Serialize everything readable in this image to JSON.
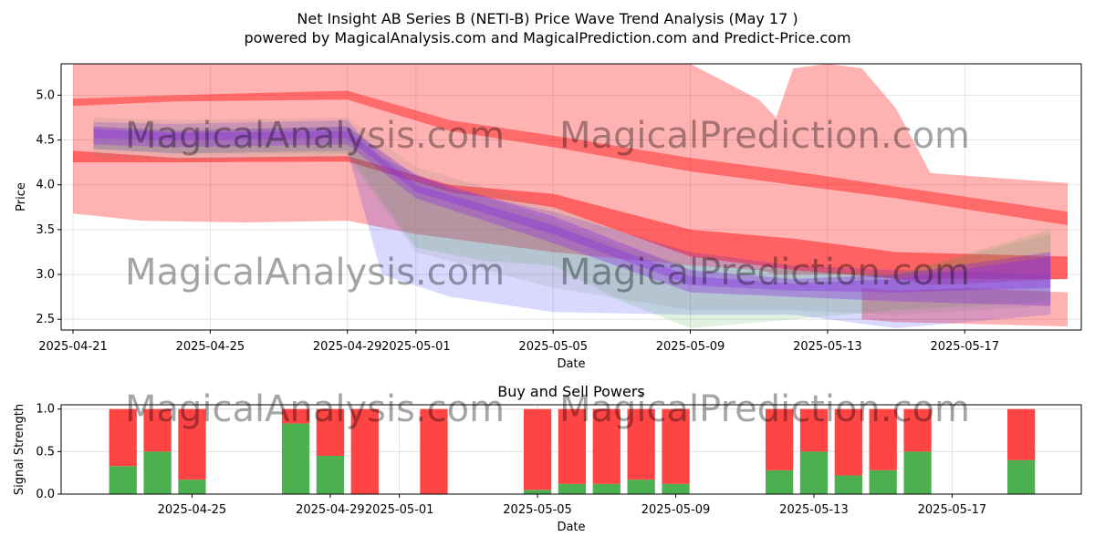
{
  "title": "Net Insight AB Series B (NETI-B) Price Wave Trend Analysis (May 17 )",
  "subtitle": "powered by MagicalAnalysis.com and MagicalPrediction.com and Predict-Price.com",
  "watermarks": [
    "MagicalAnalysis.com",
    "MagicalPrediction.com"
  ],
  "colors": {
    "red": "#ff0000",
    "blue": "#0000ff",
    "green": "#2ca02c",
    "purple": "#8a2be2",
    "gray": "#808080",
    "buy": "#4caf50",
    "sell": "#ff4444"
  },
  "chart_data": [
    {
      "type": "area",
      "title": "",
      "xlabel": "Date",
      "ylabel": "Price",
      "x_range": [
        "2025-04-21",
        "2025-05-20"
      ],
      "ylim": [
        2.38,
        5.35
      ],
      "y_ticks": [
        2.5,
        3.0,
        3.5,
        4.0,
        4.5,
        5.0
      ],
      "y_tick_labels": [
        "2.5",
        "3.0",
        "3.5",
        "4.0",
        "4.5",
        "5.0"
      ],
      "x_ticks": [
        "2025-04-21",
        "2025-04-25",
        "2025-04-29",
        "2025-05-01",
        "2025-05-05",
        "2025-05-09",
        "2025-05-13",
        "2025-05-17"
      ],
      "grid": true,
      "bands": [
        {
          "name": "Wide red band",
          "color": "red",
          "opacity": 0.3,
          "x": [
            "2025-04-21",
            "2025-04-23",
            "2025-04-26",
            "2025-04-29",
            "2025-05-01",
            "2025-05-05",
            "2025-05-09",
            "2025-05-11",
            "2025-05-11.5",
            "2025-05-12",
            "2025-05-13",
            "2025-05-14",
            "2025-05-15",
            "2025-05-16",
            "2025-05-20"
          ],
          "upper": [
            5.35,
            5.35,
            5.35,
            5.35,
            5.35,
            5.35,
            5.35,
            4.95,
            4.75,
            5.3,
            5.35,
            5.3,
            4.85,
            4.13,
            4.02
          ],
          "lower": [
            3.68,
            3.6,
            3.58,
            3.6,
            3.45,
            3.25,
            3.1,
            3.05,
            3.0,
            3.0,
            3.0,
            3.0,
            2.95,
            2.88,
            2.95
          ]
        },
        {
          "name": "Lower red band",
          "color": "red",
          "opacity": 0.3,
          "x": [
            "2025-05-14",
            "2025-05-15",
            "2025-05-17",
            "2025-05-20"
          ],
          "upper": [
            2.85,
            2.82,
            2.85,
            2.8
          ],
          "lower": [
            2.5,
            2.47,
            2.45,
            2.42
          ]
        },
        {
          "name": "Upper red stripe",
          "color": "red",
          "opacity": 0.4,
          "x": [
            "2025-04-21",
            "2025-04-24",
            "2025-04-29",
            "2025-05-02",
            "2025-05-05",
            "2025-05-09",
            "2025-05-12",
            "2025-05-15",
            "2025-05-20"
          ],
          "upper": [
            4.96,
            5.0,
            5.05,
            4.72,
            4.55,
            4.3,
            4.15,
            3.98,
            3.7
          ],
          "lower": [
            4.88,
            4.93,
            4.95,
            4.6,
            4.42,
            4.15,
            4.0,
            3.85,
            3.55
          ]
        },
        {
          "name": "Mid red stripe",
          "color": "red",
          "opacity": 0.45,
          "x": [
            "2025-04-21",
            "2025-04-24",
            "2025-04-29",
            "2025-05-02",
            "2025-05-05",
            "2025-05-09",
            "2025-05-12",
            "2025-05-15",
            "2025-05-20"
          ],
          "upper": [
            4.38,
            4.3,
            4.32,
            4.0,
            3.9,
            3.5,
            3.4,
            3.25,
            3.2
          ],
          "lower": [
            4.25,
            4.25,
            4.26,
            3.92,
            3.75,
            3.2,
            3.05,
            2.95,
            2.95
          ]
        },
        {
          "name": "Blue band",
          "color": "blue",
          "opacity": 0.15,
          "x": [
            "2025-04-21.6",
            "2025-04-24",
            "2025-04-29",
            "2025-04-30",
            "2025-05-02",
            "2025-05-05",
            "2025-05-09",
            "2025-05-12",
            "2025-05-15",
            "2025-05-19.5"
          ],
          "upper": [
            4.7,
            4.68,
            4.72,
            4.3,
            3.95,
            3.7,
            3.25,
            3.1,
            3.05,
            3.0
          ],
          "lower": [
            4.4,
            4.35,
            4.38,
            3.0,
            2.75,
            2.58,
            2.55,
            2.55,
            2.4,
            2.55
          ]
        },
        {
          "name": "Green band",
          "color": "green",
          "opacity": 0.15,
          "x": [
            "2025-04-21.6",
            "2025-04-24",
            "2025-04-29",
            "2025-05-01",
            "2025-05-03",
            "2025-05-05",
            "2025-05-07",
            "2025-05-09",
            "2025-05-12",
            "2025-05-15",
            "2025-05-19.5"
          ],
          "upper": [
            4.65,
            4.62,
            4.65,
            4.05,
            3.85,
            3.6,
            3.3,
            3.1,
            3.05,
            3.0,
            3.5
          ],
          "lower": [
            4.4,
            4.35,
            4.35,
            3.3,
            3.15,
            3.1,
            2.7,
            2.4,
            2.5,
            2.6,
            2.7
          ]
        },
        {
          "name": "Gray band",
          "color": "gray",
          "opacity": 0.15,
          "x": [
            "2025-04-21.6",
            "2025-04-24",
            "2025-04-29",
            "2025-05-01",
            "2025-05-05",
            "2025-05-09",
            "2025-05-12",
            "2025-05-15",
            "2025-05-19.5"
          ],
          "upper": [
            4.75,
            4.72,
            4.75,
            4.2,
            3.75,
            3.2,
            3.05,
            3.0,
            3.45
          ],
          "lower": [
            4.3,
            4.28,
            4.3,
            3.25,
            2.85,
            2.6,
            2.6,
            2.55,
            2.65
          ]
        },
        {
          "name": "Purple band",
          "color": "purple",
          "opacity": 0.35,
          "x": [
            "2025-04-21.6",
            "2025-04-24",
            "2025-04-29",
            "2025-05-01",
            "2025-05-05",
            "2025-05-09",
            "2025-05-12",
            "2025-05-15",
            "2025-05-19.5"
          ],
          "upper": [
            4.65,
            4.6,
            4.65,
            4.1,
            3.65,
            3.05,
            2.95,
            3.0,
            3.25
          ],
          "lower": [
            4.45,
            4.42,
            4.45,
            3.85,
            3.35,
            2.8,
            2.75,
            2.7,
            2.65
          ]
        },
        {
          "name": "Purple core",
          "color": "purple",
          "opacity": 0.35,
          "x": [
            "2025-04-21.6",
            "2025-04-24",
            "2025-04-29",
            "2025-05-01",
            "2025-05-05",
            "2025-05-09",
            "2025-05-12",
            "2025-05-15",
            "2025-05-19.5"
          ],
          "upper": [
            4.62,
            4.58,
            4.6,
            4.0,
            3.55,
            2.98,
            2.9,
            2.95,
            3.2
          ],
          "lower": [
            4.52,
            4.5,
            4.52,
            3.92,
            3.45,
            2.88,
            2.82,
            2.8,
            2.85
          ]
        }
      ]
    },
    {
      "type": "bar",
      "title": "Buy and Sell Powers",
      "xlabel": "Date",
      "ylabel": "Signal Strength",
      "ylim": [
        0,
        1.05
      ],
      "y_ticks": [
        0.0,
        0.5,
        1.0
      ],
      "y_tick_labels": [
        "0.0",
        "0.5",
        "1.0"
      ],
      "x_ticks": [
        "2025-04-25",
        "2025-04-29",
        "2025-05-01",
        "2025-05-05",
        "2025-05-09",
        "2025-05-13",
        "2025-05-17"
      ],
      "x_range": [
        "2025-04-21",
        "2025-05-20"
      ],
      "grid": true,
      "dates": [
        "2025-04-23",
        "2025-04-24",
        "2025-04-25",
        "2025-04-28",
        "2025-04-29",
        "2025-04-30",
        "2025-05-02",
        "2025-05-05",
        "2025-05-06",
        "2025-05-07",
        "2025-05-08",
        "2025-05-09",
        "2025-05-12",
        "2025-05-13",
        "2025-05-14",
        "2025-05-15",
        "2025-05-16",
        "2025-05-19"
      ],
      "series": [
        {
          "name": "Buy",
          "values": [
            0.33,
            0.5,
            0.17,
            0.83,
            0.45,
            0.0,
            0.0,
            0.05,
            0.12,
            0.12,
            0.17,
            0.12,
            0.28,
            0.5,
            0.22,
            0.28,
            0.5,
            0.4
          ]
        },
        {
          "name": "Sell",
          "values": [
            0.67,
            0.5,
            0.83,
            0.17,
            0.55,
            1.0,
            1.0,
            0.95,
            0.88,
            0.88,
            0.83,
            0.88,
            0.72,
            0.5,
            0.78,
            0.72,
            0.5,
            0.6
          ]
        }
      ]
    }
  ]
}
